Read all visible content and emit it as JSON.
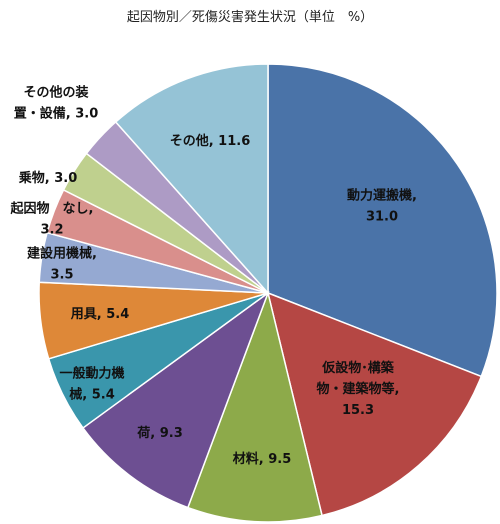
{
  "chart_data": {
    "type": "pie",
    "title": "起因物別／死傷災害発生状況（単位　%）",
    "categories": [
      "動力運搬機",
      "仮設物・構築物・建築物等",
      "材料",
      "荷",
      "一般動力機械",
      "用具",
      "建設用機械",
      "起因物　なし",
      "乗物",
      "その他の装置・設備",
      "その他"
    ],
    "values": [
      31.0,
      15.3,
      9.5,
      9.3,
      5.4,
      5.4,
      3.5,
      3.2,
      3.0,
      3.0,
      11.6
    ],
    "value_labels": [
      "31.0",
      "15.3",
      "9.5",
      "9.3",
      "5.4",
      "5.4",
      "3.5",
      "3.2",
      "3.0",
      "3.0",
      "11.6"
    ],
    "label_lines": [
      [
        "動力運搬機,",
        "31.0"
      ],
      [
        "仮設物･構築",
        "物・建築物等,",
        "15.3"
      ],
      [
        "材料, 9.5"
      ],
      [
        "荷, 9.3"
      ],
      [
        "一般動力機",
        "械, 5.4"
      ],
      [
        "用具, 5.4"
      ],
      [
        "建設用機械,",
        "3.5"
      ],
      [
        "起因物　なし,",
        "3.2"
      ],
      [
        "乗物, 3.0"
      ],
      [
        "その他の装",
        "置・設備, 3.0"
      ],
      [
        "その他, 11.6"
      ]
    ],
    "colors": [
      "#4A73A8",
      "#B54744",
      "#8DAA4A",
      "#6D4F92",
      "#3A96AC",
      "#DE8838",
      "#95A9D2",
      "#D98F8C",
      "#BFD08E",
      "#AD9BC5",
      "#95C3D6"
    ],
    "start_angle_deg": 0,
    "direction": "clockwise",
    "legend": "none"
  }
}
